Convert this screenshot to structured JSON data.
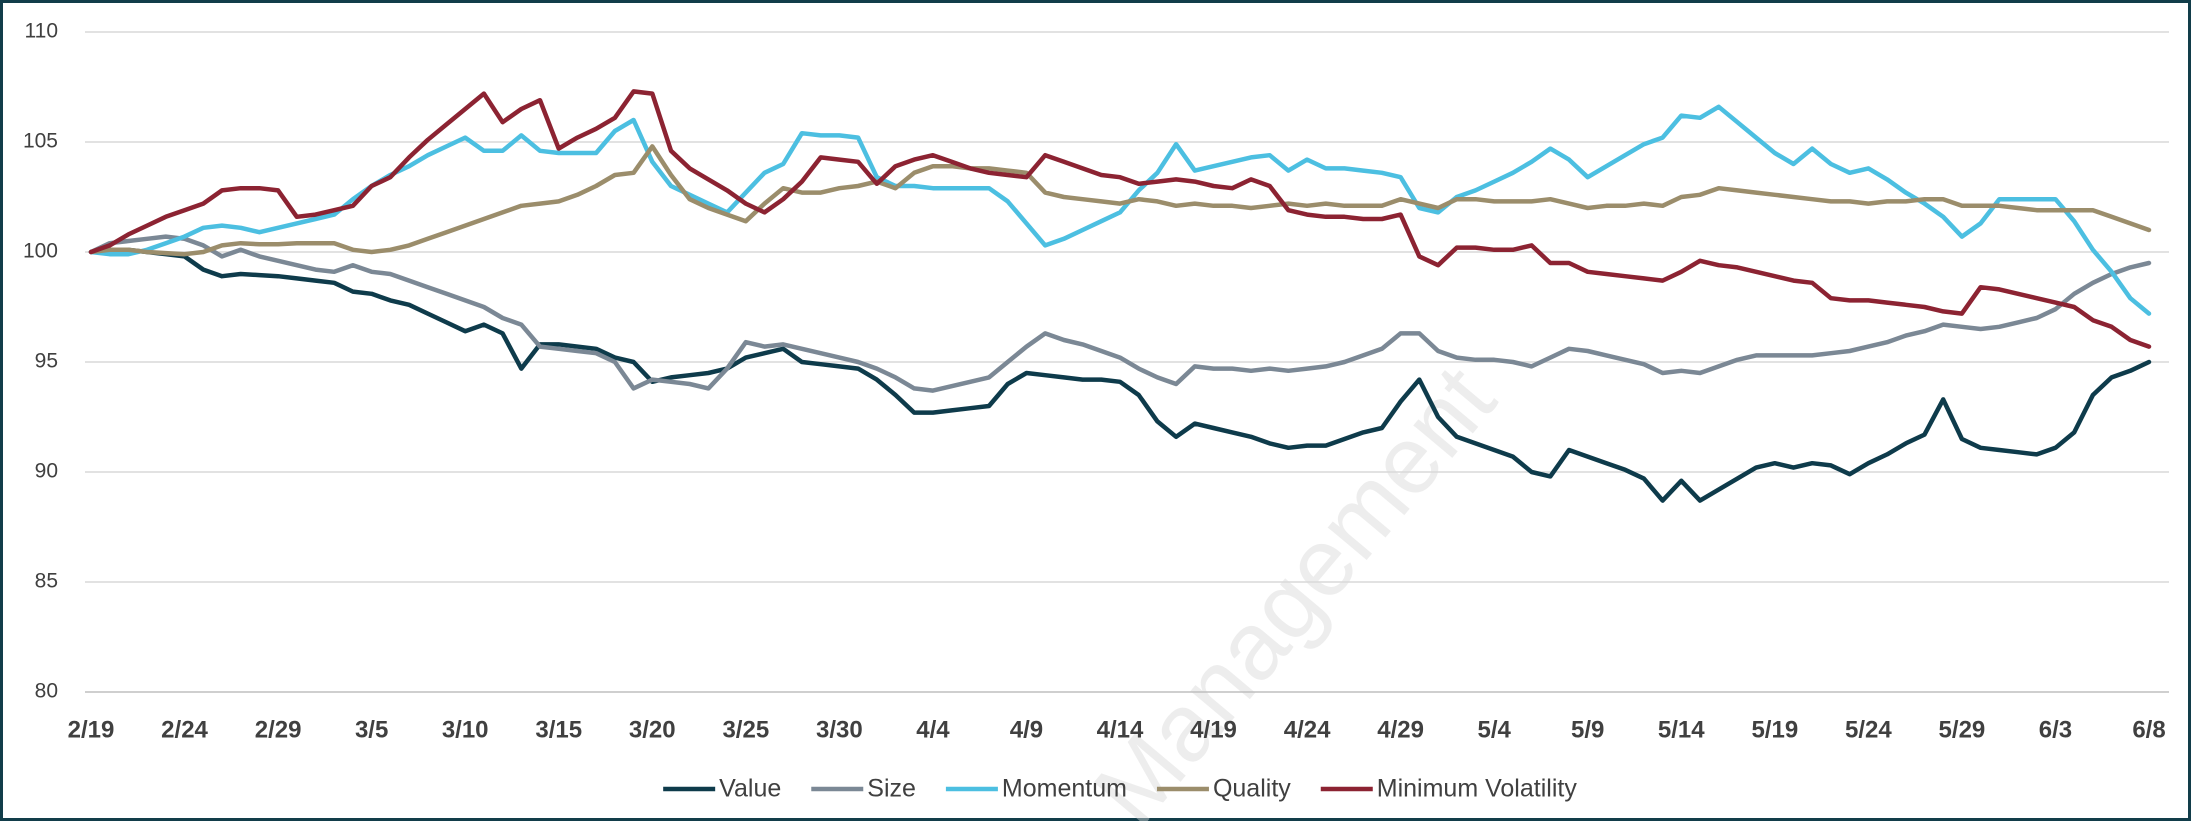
{
  "chart_data": {
    "type": "line",
    "watermark": "Management",
    "categories": [
      "2/19",
      null,
      null,
      null,
      null,
      "2/24",
      null,
      null,
      null,
      null,
      "2/29",
      null,
      null,
      null,
      null,
      "3/5",
      null,
      null,
      null,
      null,
      "3/10",
      null,
      null,
      null,
      null,
      "3/15",
      null,
      null,
      null,
      null,
      "3/20",
      null,
      null,
      null,
      null,
      "3/25",
      null,
      null,
      null,
      null,
      "3/30",
      null,
      null,
      null,
      null,
      "4/4",
      null,
      null,
      null,
      null,
      "4/9",
      null,
      null,
      null,
      null,
      "4/14",
      null,
      null,
      null,
      null,
      "4/19",
      null,
      null,
      null,
      null,
      "4/24",
      null,
      null,
      null,
      null,
      "4/29",
      null,
      null,
      null,
      null,
      "5/4",
      null,
      null,
      null,
      null,
      "5/9",
      null,
      null,
      null,
      null,
      "5/14",
      null,
      null,
      null,
      null,
      "5/19",
      null,
      null,
      null,
      null,
      "5/24",
      null,
      null,
      null,
      null,
      "5/29",
      null,
      null,
      null,
      null,
      "6/3",
      null,
      null,
      null,
      null,
      "6/8"
    ],
    "series": [
      {
        "name": "Value",
        "color": "#0e3b4b",
        "values": [
          100,
          100.1,
          100.1,
          100,
          99.9,
          99.8,
          99.2,
          98.9,
          99,
          98.95,
          98.9,
          98.8,
          98.7,
          98.6,
          98.2,
          98.1,
          97.8,
          97.6,
          97.2,
          96.8,
          96.4,
          96.7,
          96.3,
          94.7,
          95.8,
          95.8,
          95.7,
          95.6,
          95.2,
          95,
          94.1,
          94.3,
          94.4,
          94.5,
          94.7,
          95.2,
          95.4,
          95.6,
          95,
          94.9,
          94.8,
          94.7,
          94.2,
          93.5,
          92.7,
          92.7,
          92.8,
          92.9,
          93,
          94,
          94.5,
          94.4,
          94.3,
          94.2,
          94.2,
          94.1,
          93.5,
          92.3,
          91.6,
          92.2,
          92,
          91.8,
          91.6,
          91.3,
          91.1,
          91.2,
          91.2,
          91.5,
          91.8,
          92,
          93.2,
          94.2,
          92.5,
          91.6,
          91.3,
          91,
          90.7,
          90,
          89.8,
          91,
          90.7,
          90.4,
          90.1,
          89.7,
          88.7,
          89.6,
          88.7,
          89.2,
          89.7,
          90.2,
          90.4,
          90.2,
          90.4,
          90.3,
          89.9,
          90.4,
          90.8,
          91.3,
          91.7,
          93.3,
          91.5,
          91.1,
          91,
          90.9,
          90.8,
          91.1,
          91.8,
          93.5,
          94.3,
          94.6,
          95
        ]
      },
      {
        "name": "Size",
        "color": "#7b8895",
        "values": [
          100,
          100.4,
          100.5,
          100.6,
          100.7,
          100.6,
          100.3,
          99.8,
          100.1,
          99.8,
          99.6,
          99.4,
          99.2,
          99.1,
          99.4,
          99.1,
          99,
          98.7,
          98.4,
          98.1,
          97.8,
          97.5,
          97,
          96.7,
          95.7,
          95.6,
          95.5,
          95.4,
          95,
          93.8,
          94.2,
          94.1,
          94,
          93.8,
          94.7,
          95.9,
          95.7,
          95.8,
          95.6,
          95.4,
          95.2,
          95,
          94.7,
          94.3,
          93.8,
          93.7,
          93.9,
          94.1,
          94.3,
          95,
          95.7,
          96.3,
          96,
          95.8,
          95.5,
          95.2,
          94.7,
          94.3,
          94,
          94.8,
          94.7,
          94.7,
          94.6,
          94.7,
          94.6,
          94.7,
          94.8,
          95,
          95.3,
          95.6,
          96.3,
          96.3,
          95.5,
          95.2,
          95.1,
          95.1,
          95,
          94.8,
          95.2,
          95.6,
          95.5,
          95.3,
          95.1,
          94.9,
          94.5,
          94.6,
          94.5,
          94.8,
          95.1,
          95.3,
          95.3,
          95.3,
          95.3,
          95.4,
          95.5,
          95.7,
          95.9,
          96.2,
          96.4,
          96.7,
          96.6,
          96.5,
          96.6,
          96.8,
          97,
          97.4,
          98.1,
          98.6,
          99,
          99.3,
          99.5
        ]
      },
      {
        "name": "Momentum",
        "color": "#4cbfe1",
        "values": [
          100,
          99.9,
          99.9,
          100.1,
          100.4,
          100.7,
          101.1,
          101.2,
          101.1,
          100.9,
          101.1,
          101.3,
          101.5,
          101.7,
          102.4,
          103,
          103.5,
          103.9,
          104.4,
          104.8,
          105.2,
          104.6,
          104.6,
          105.3,
          104.6,
          104.5,
          104.5,
          104.5,
          105.5,
          106,
          104.1,
          103,
          102.6,
          102.2,
          101.8,
          102.7,
          103.6,
          104,
          105.4,
          105.3,
          105.3,
          105.2,
          103.4,
          103,
          103,
          102.9,
          102.9,
          102.9,
          102.9,
          102.3,
          101.3,
          100.3,
          100.6,
          101,
          101.4,
          101.8,
          102.8,
          103.6,
          104.9,
          103.7,
          103.9,
          104.1,
          104.3,
          104.4,
          103.7,
          104.2,
          103.8,
          103.8,
          103.7,
          103.6,
          103.4,
          102,
          101.8,
          102.5,
          102.8,
          103.2,
          103.6,
          104.1,
          104.7,
          104.2,
          103.4,
          103.9,
          104.4,
          104.9,
          105.2,
          106.2,
          106.1,
          106.6,
          105.9,
          105.2,
          104.5,
          104,
          104.7,
          104,
          103.6,
          103.8,
          103.3,
          102.7,
          102.2,
          101.6,
          100.7,
          101.3,
          102.4,
          102.4,
          102.4,
          102.4,
          101.4,
          100.1,
          99.1,
          97.9,
          97.2
        ]
      },
      {
        "name": "Quality",
        "color": "#9b8d6b",
        "values": [
          100,
          100.1,
          100.1,
          100,
          99.95,
          99.9,
          100,
          100.3,
          100.4,
          100.35,
          100.35,
          100.4,
          100.4,
          100.4,
          100.1,
          100,
          100.1,
          100.3,
          100.6,
          100.9,
          101.2,
          101.5,
          101.8,
          102.1,
          102.2,
          102.3,
          102.6,
          103,
          103.5,
          103.6,
          104.8,
          103.5,
          102.4,
          102,
          101.7,
          101.4,
          102.2,
          102.9,
          102.7,
          102.7,
          102.9,
          103,
          103.2,
          102.9,
          103.6,
          103.9,
          103.9,
          103.8,
          103.8,
          103.7,
          103.6,
          102.7,
          102.5,
          102.4,
          102.3,
          102.2,
          102.4,
          102.3,
          102.1,
          102.2,
          102.1,
          102.1,
          102,
          102.1,
          102.2,
          102.1,
          102.2,
          102.1,
          102.1,
          102.1,
          102.4,
          102.2,
          102,
          102.4,
          102.4,
          102.3,
          102.3,
          102.3,
          102.4,
          102.2,
          102,
          102.1,
          102.1,
          102.2,
          102.1,
          102.5,
          102.6,
          102.9,
          102.8,
          102.7,
          102.6,
          102.5,
          102.4,
          102.3,
          102.3,
          102.2,
          102.3,
          102.3,
          102.4,
          102.4,
          102.1,
          102.1,
          102.1,
          102,
          101.9,
          101.9,
          101.9,
          101.9,
          101.6,
          101.3,
          101
        ]
      },
      {
        "name": "Minimum Volatility",
        "color": "#8c2332",
        "values": [
          100,
          100.3,
          100.8,
          101.2,
          101.6,
          101.9,
          102.2,
          102.8,
          102.9,
          102.9,
          102.8,
          101.6,
          101.7,
          101.9,
          102.1,
          103,
          103.4,
          104.3,
          105.1,
          105.8,
          106.5,
          107.2,
          105.9,
          106.5,
          106.9,
          104.7,
          105.2,
          105.6,
          106.1,
          107.3,
          107.2,
          104.6,
          103.8,
          103.3,
          102.8,
          102.2,
          101.8,
          102.4,
          103.2,
          104.3,
          104.2,
          104.1,
          103.1,
          103.9,
          104.2,
          104.4,
          104.1,
          103.8,
          103.6,
          103.5,
          103.4,
          104.4,
          104.1,
          103.8,
          103.5,
          103.4,
          103.1,
          103.2,
          103.3,
          103.2,
          103,
          102.9,
          103.3,
          103,
          101.9,
          101.7,
          101.6,
          101.6,
          101.5,
          101.5,
          101.7,
          99.8,
          99.4,
          100.2,
          100.2,
          100.1,
          100.1,
          100.3,
          99.5,
          99.5,
          99.1,
          99,
          98.9,
          98.8,
          98.7,
          99.1,
          99.6,
          99.4,
          99.3,
          99.1,
          98.9,
          98.7,
          98.6,
          97.9,
          97.8,
          97.8,
          97.7,
          97.6,
          97.5,
          97.3,
          97.2,
          98.4,
          98.3,
          98.1,
          97.9,
          97.7,
          97.5,
          96.9,
          96.6,
          96,
          95.7
        ]
      }
    ],
    "ylim": [
      80,
      110
    ],
    "yticks": [
      80,
      85,
      90,
      95,
      100,
      105,
      110
    ],
    "grid": true,
    "legend": "bottom"
  }
}
